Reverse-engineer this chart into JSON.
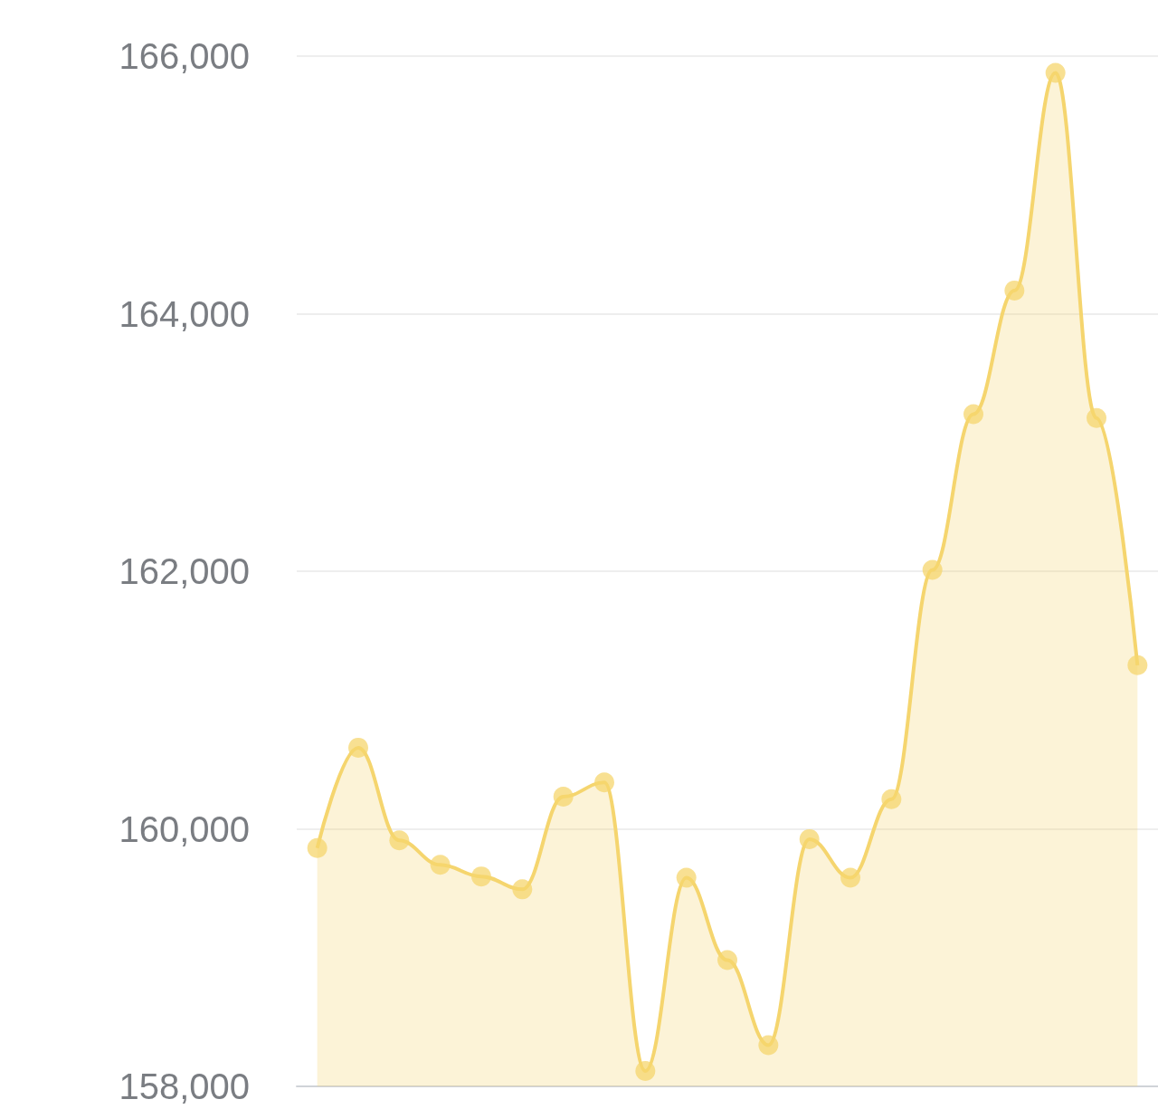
{
  "chart_data": {
    "type": "area",
    "categories": [
      null,
      null,
      null,
      null,
      null,
      null,
      null,
      null,
      null,
      null,
      null,
      null,
      null,
      null,
      null,
      null,
      null,
      null,
      null,
      null,
      null
    ],
    "series": [
      {
        "color": "#f5d56e",
        "values": [
          159850,
          160630,
          159910,
          159720,
          159630,
          159530,
          160250,
          160360,
          158120,
          159620,
          158980,
          158320,
          159920,
          159620,
          160230,
          162010,
          163220,
          164180,
          165870,
          163190,
          161270
        ]
      }
    ],
    "ylim": [
      158000,
      166000
    ],
    "yticks": [
      {
        "value": 158000,
        "label": "158,000"
      },
      {
        "value": 160000,
        "label": "160,000"
      },
      {
        "value": 162000,
        "label": "162,000"
      },
      {
        "value": 164000,
        "label": "164,000"
      },
      {
        "value": 166000,
        "label": "166,000"
      }
    ],
    "grid": "y",
    "tick_labels": "y",
    "marker": "circle"
  }
}
